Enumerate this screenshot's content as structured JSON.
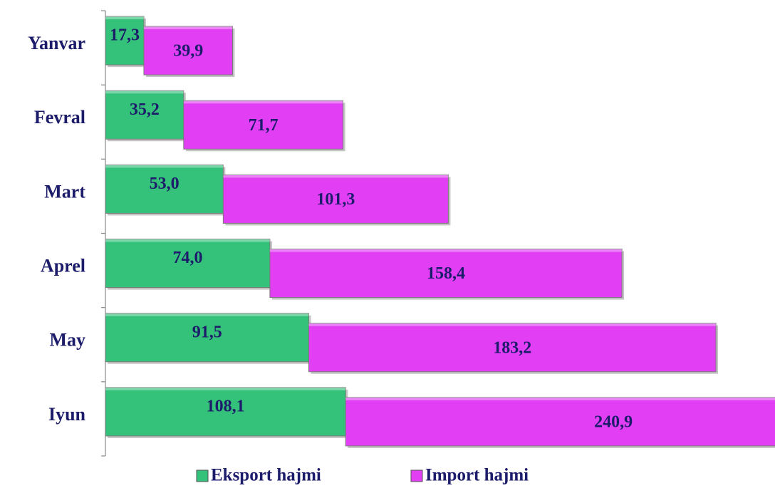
{
  "chart_data": {
    "type": "stacked-bar-horizontal",
    "categories": [
      "Yanvar",
      "Fevral",
      "Mart",
      "Aprel",
      "May",
      "Iyun"
    ],
    "series": [
      {
        "name": "Eksport hajmi",
        "color": "#34c27a",
        "values": [
          17.3,
          35.2,
          53.0,
          74.0,
          91.5,
          108.1
        ],
        "value_labels": [
          "17,3",
          "35,2",
          "53,0",
          "74,0",
          "91,5",
          "108,1"
        ]
      },
      {
        "name": "Import hajmi",
        "color": "#e23ff5",
        "values": [
          39.9,
          71.7,
          101.3,
          158.4,
          183.2,
          240.9
        ],
        "value_labels": [
          "39,9",
          "71,7",
          "101,3",
          "158,4",
          "183,2",
          "240,9"
        ]
      }
    ]
  }
}
